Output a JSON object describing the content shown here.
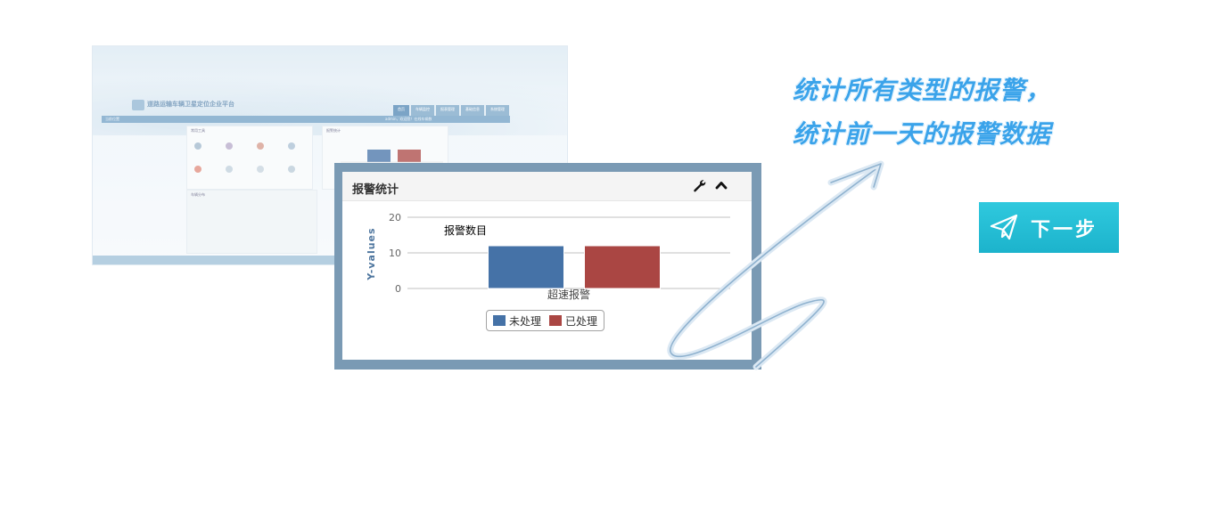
{
  "background_screenshot": {
    "app_title": "道路运输车辆卫星定位企业平台",
    "nav_tabs": [
      "首页",
      "车辆监控",
      "报表管理",
      "基础信息",
      "系统管理"
    ],
    "breadcrumb": "当前位置",
    "user_info": "admin，欢迎您！在线车辆数",
    "panels": [
      {
        "title": "常用工具"
      },
      {
        "title": "报警统计"
      },
      {
        "title": "车辆分布"
      }
    ]
  },
  "panel": {
    "title": "报警统计"
  },
  "chart_data": {
    "type": "bar",
    "title": "报警数目",
    "ylabel": "Y-values",
    "categories": [
      "超速报警"
    ],
    "series": [
      {
        "name": "未处理",
        "values": [
          12
        ],
        "color": "#4572a7"
      },
      {
        "name": "已处理",
        "values": [
          12
        ],
        "color": "#aa4643"
      }
    ],
    "ylim": [
      0,
      20
    ],
    "yticks": [
      0,
      10,
      20
    ],
    "grid": true,
    "legend": "bottom"
  },
  "headline": {
    "line1": "统计所有类型的报警，",
    "line2": "统计前一天的报警数据"
  },
  "next_button": {
    "label": "下一步"
  },
  "colors": {
    "frame": "#7a9ab4",
    "headline": "#3aa3ea",
    "next_button": "#1fb8d1"
  }
}
